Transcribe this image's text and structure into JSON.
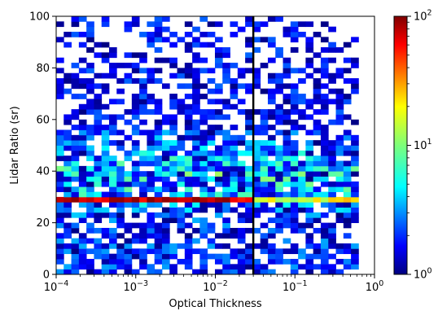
{
  "chart_data": {
    "type": "heatmap",
    "title": "",
    "xlabel": "Optical Thickness",
    "ylabel": "Lidar Ratio (sr)",
    "x_scale": "log",
    "x_range": [
      0.0001,
      1
    ],
    "x_ticks": [
      {
        "value": 0.0001,
        "base": "10",
        "exp": "−4"
      },
      {
        "value": 0.001,
        "base": "10",
        "exp": "−3"
      },
      {
        "value": 0.01,
        "base": "10",
        "exp": "−2"
      },
      {
        "value": 0.1,
        "base": "10",
        "exp": "−1"
      },
      {
        "value": 1,
        "base": "10",
        "exp": "0"
      }
    ],
    "y_range": [
      0,
      100
    ],
    "y_ticks": [
      "0",
      "20",
      "40",
      "60",
      "80",
      "100"
    ],
    "grid": false,
    "vertical_line": {
      "x": 0.03,
      "color": "#000000"
    },
    "colorbar": {
      "scale": "log",
      "range": [
        1,
        100
      ],
      "colormap": "jet",
      "ticks": [
        {
          "value": 1,
          "base": "10",
          "exp": "0"
        },
        {
          "value": 10,
          "base": "10",
          "exp": "1"
        },
        {
          "value": 100,
          "base": "10",
          "exp": "2"
        }
      ]
    },
    "bins": {
      "x_bins": 40,
      "x_start": 0.0001,
      "x_end": 0.63,
      "y_bins": 50,
      "y_start": 0,
      "y_end": 100
    },
    "pattern": {
      "peak_band": {
        "lidar_ratio_from": 28,
        "lidar_ratio_to": 31,
        "optical_thickness_to": 0.03,
        "count": 80
      },
      "dense_band": {
        "lidar_ratio_from": 14,
        "lidar_ratio_to": 56,
        "typical_count": 6
      },
      "sparse_region": {
        "lidar_ratio_from": 56,
        "lidar_ratio_to": 100,
        "typical_count": 1.5
      }
    }
  }
}
